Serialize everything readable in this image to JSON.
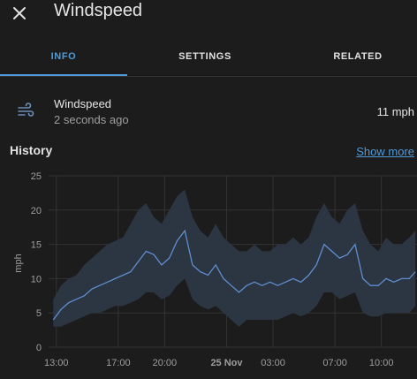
{
  "dialog": {
    "title": "Windspeed",
    "close_icon": "close-icon"
  },
  "tabs": [
    {
      "label": "INFO",
      "active": true
    },
    {
      "label": "SETTINGS",
      "active": false
    },
    {
      "label": "RELATED",
      "active": false
    }
  ],
  "entity": {
    "icon": "weather-windy-icon",
    "name": "Windspeed",
    "last_changed": "2 seconds ago",
    "state": "11 mph"
  },
  "history": {
    "title": "History",
    "show_more": "Show more"
  },
  "colors": {
    "accent": "#4f9ad8",
    "series_line": "#5f8ecf",
    "band_fill": "#2c3542",
    "background": "#1c1c1c"
  },
  "chart_data": {
    "type": "line",
    "ylabel": "mph",
    "ylim": [
      0,
      25
    ],
    "yticks": [
      0,
      5,
      10,
      15,
      20,
      25
    ],
    "xticks": [
      {
        "label": "13:00",
        "hour": 13,
        "bold": false
      },
      {
        "label": "17:00",
        "hour": 17,
        "bold": false
      },
      {
        "label": "20:00",
        "hour": 20,
        "bold": false
      },
      {
        "label": "25 Nov",
        "hour": 24,
        "bold": true
      },
      {
        "label": "03:00",
        "hour": 27,
        "bold": false
      },
      {
        "label": "07:00",
        "hour": 31,
        "bold": false
      },
      {
        "label": "10:00",
        "hour": 34,
        "bold": false
      }
    ],
    "xlim": [
      12.5,
      36.3
    ],
    "grid": true,
    "series": [
      {
        "x": [
          12.8,
          13.3,
          13.8,
          14.3,
          14.8,
          15.3,
          15.8,
          16.3,
          16.8,
          17.3,
          17.8,
          18.3,
          18.8,
          19.3,
          19.8,
          20.3,
          20.8,
          21.3,
          21.8,
          22.3,
          22.8,
          23.3,
          23.8,
          24.3,
          24.8,
          25.3,
          25.8,
          26.3,
          26.8,
          27.3,
          27.8,
          28.3,
          28.8,
          29.3,
          29.8,
          30.3,
          30.8,
          31.3,
          31.8,
          32.3,
          32.8,
          33.3,
          33.8,
          34.3,
          34.8,
          35.3,
          35.8,
          36.2
        ],
        "mean": [
          4,
          5.5,
          6.5,
          7,
          7.5,
          8.5,
          9,
          9.5,
          10,
          10.5,
          11,
          12.5,
          14,
          13.5,
          12,
          13,
          15.5,
          17,
          12,
          11,
          10.5,
          12,
          10,
          9,
          8,
          9,
          9.5,
          9,
          9.5,
          9,
          9.5,
          10,
          9.5,
          10.5,
          12,
          15,
          14,
          13,
          13.5,
          15,
          10,
          9,
          9,
          10,
          9.5,
          10,
          10,
          11
        ],
        "max": [
          7,
          9,
          10,
          10.5,
          12,
          13,
          14,
          15,
          15.5,
          16,
          18,
          20,
          21,
          19,
          18,
          20,
          22,
          23,
          19,
          17,
          16,
          18,
          16,
          15,
          14,
          14,
          15,
          14,
          14,
          15,
          15,
          16,
          15,
          16,
          19,
          21,
          19,
          18,
          20,
          21,
          17,
          15,
          14,
          16,
          15,
          15,
          16,
          17
        ],
        "min": [
          3,
          3,
          3.5,
          4,
          4.5,
          5,
          5,
          5.5,
          6,
          6,
          6.5,
          7,
          8,
          8,
          7,
          7.5,
          9,
          10,
          7,
          6,
          5.5,
          6,
          5,
          4,
          3,
          4,
          4,
          4,
          4,
          4,
          4.5,
          5,
          4.5,
          5,
          6,
          8,
          8,
          7,
          7.5,
          8,
          5,
          4.5,
          4.5,
          5,
          5,
          5,
          5,
          6
        ]
      }
    ]
  }
}
